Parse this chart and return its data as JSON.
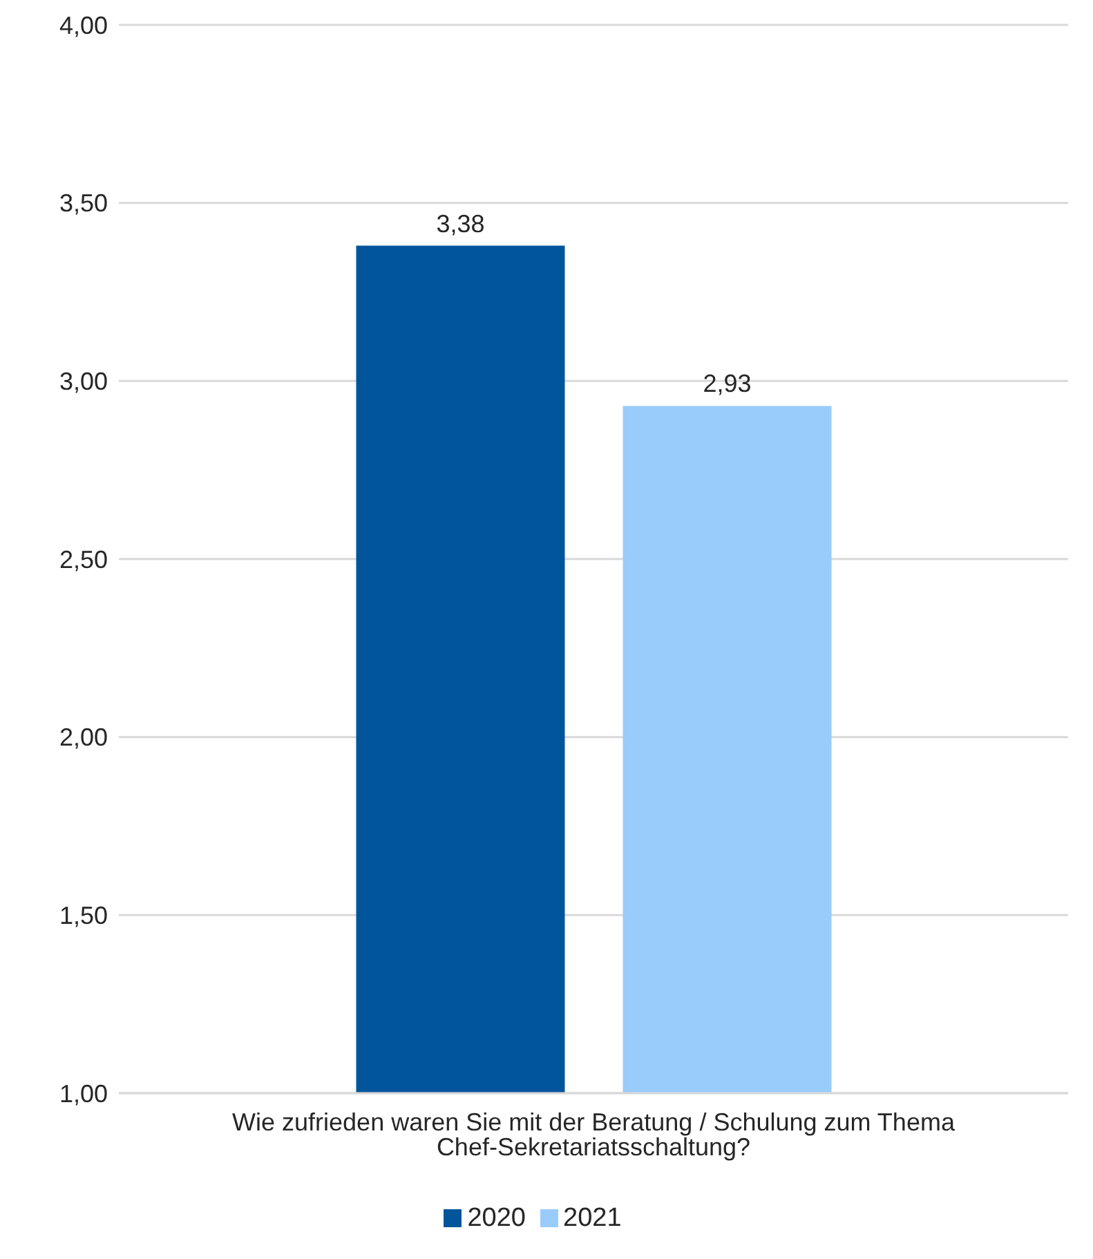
{
  "chart_data": {
    "type": "bar",
    "categories": [
      "Wie zufrieden waren Sie mit der Beratung / Schulung zum Thema Chef-Sekretariatsschaltung?"
    ],
    "series": [
      {
        "name": "2020",
        "color": "#00559b",
        "values": [
          3.38
        ],
        "value_labels": [
          "3,38"
        ]
      },
      {
        "name": "2021",
        "color": "#99ccfa",
        "values": [
          2.93
        ],
        "value_labels": [
          "2,93"
        ]
      }
    ],
    "ylim": [
      1,
      4
    ],
    "yticks": [
      {
        "value": 1,
        "label": "1,00"
      },
      {
        "value": 1.5,
        "label": "1,50"
      },
      {
        "value": 2,
        "label": "2,00"
      },
      {
        "value": 2.5,
        "label": "2,50"
      },
      {
        "value": 3,
        "label": "3,00"
      },
      {
        "value": 3.5,
        "label": "3,50"
      },
      {
        "value": 4,
        "label": "4,00"
      }
    ],
    "grid": "y",
    "legend": "bottom"
  }
}
